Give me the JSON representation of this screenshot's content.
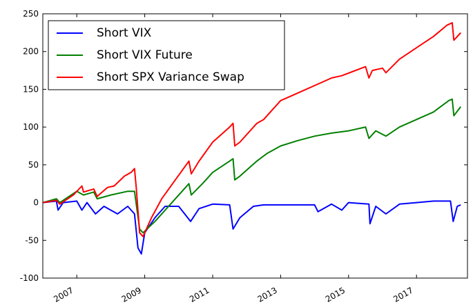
{
  "chart_data": {
    "type": "line",
    "series": [
      {
        "name": "Short VIX",
        "color": "#0000ff",
        "x": [
          2006.0,
          2006.4,
          2006.45,
          2006.6,
          2007.0,
          2007.15,
          2007.3,
          2007.55,
          2007.8,
          2008.2,
          2008.5,
          2008.7,
          2008.8,
          2008.9,
          2009.0,
          2009.3,
          2009.6,
          2010.0,
          2010.35,
          2010.6,
          2011.0,
          2011.5,
          2011.6,
          2011.8,
          2012.2,
          2012.5,
          2013.0,
          2013.5,
          2014.0,
          2014.1,
          2014.5,
          2014.8,
          2015.0,
          2015.6,
          2015.63,
          2015.8,
          2016.1,
          2016.5,
          2017.0,
          2017.5,
          2018.0,
          2018.08,
          2018.2,
          2018.3
        ],
        "values": [
          0,
          2,
          -10,
          0,
          2,
          -10,
          0,
          -15,
          -5,
          -15,
          -5,
          -15,
          -60,
          -68,
          -40,
          -20,
          -5,
          -5,
          -25,
          -8,
          -2,
          -3,
          -35,
          -20,
          -5,
          -3,
          -3,
          -3,
          -3,
          -12,
          -2,
          -10,
          0,
          -2,
          -28,
          -5,
          -15,
          -2,
          0,
          2,
          2,
          -25,
          -5,
          -3
        ]
      },
      {
        "name": "Short VIX Future",
        "color": "#008000",
        "x": [
          2006.0,
          2006.4,
          2006.5,
          2007.0,
          2007.2,
          2007.5,
          2007.6,
          2008.0,
          2008.5,
          2008.7,
          2008.85,
          2008.95,
          2009.3,
          2009.8,
          2010.3,
          2010.37,
          2010.7,
          2011.0,
          2011.5,
          2011.6,
          2011.65,
          2011.8,
          2012.3,
          2012.6,
          2013.0,
          2013.5,
          2014.0,
          2014.5,
          2015.0,
          2015.5,
          2015.6,
          2015.8,
          2016.1,
          2016.5,
          2017.0,
          2017.5,
          2017.95,
          2018.05,
          2018.1,
          2018.3
        ],
        "values": [
          0,
          5,
          0,
          15,
          10,
          14,
          5,
          10,
          15,
          15,
          -35,
          -40,
          -25,
          0,
          25,
          10,
          25,
          40,
          55,
          58,
          30,
          35,
          55,
          65,
          75,
          82,
          88,
          92,
          95,
          100,
          85,
          95,
          88,
          100,
          110,
          120,
          135,
          137,
          115,
          127
        ]
      },
      {
        "name": "Short SPX Variance Swap",
        "color": "#ff0000",
        "x": [
          2006.0,
          2006.4,
          2006.5,
          2006.9,
          2007.15,
          2007.2,
          2007.5,
          2007.6,
          2007.9,
          2008.1,
          2008.4,
          2008.6,
          2008.7,
          2008.75,
          2008.85,
          2008.95,
          2009.2,
          2009.5,
          2009.9,
          2010.3,
          2010.37,
          2010.6,
          2011.0,
          2011.5,
          2011.6,
          2011.65,
          2011.8,
          2012.3,
          2012.5,
          2013.0,
          2013.5,
          2014.0,
          2014.5,
          2014.8,
          2015.5,
          2015.6,
          2015.7,
          2016.0,
          2016.1,
          2016.5,
          2017.0,
          2017.5,
          2017.9,
          2018.05,
          2018.1,
          2018.3
        ],
        "values": [
          0,
          3,
          -2,
          10,
          22,
          14,
          18,
          8,
          20,
          22,
          35,
          40,
          45,
          20,
          -40,
          -45,
          -20,
          5,
          30,
          55,
          38,
          55,
          80,
          100,
          105,
          75,
          80,
          105,
          110,
          135,
          145,
          155,
          165,
          168,
          180,
          165,
          175,
          178,
          172,
          190,
          205,
          220,
          235,
          238,
          215,
          225
        ]
      }
    ],
    "xlim": [
      2006.0,
      2018.5
    ],
    "xticks": [
      2007,
      2009,
      2011,
      2013,
      2015,
      2017
    ],
    "ylim": [
      -100,
      250
    ],
    "yticks": [
      -100,
      -50,
      0,
      50,
      100,
      150,
      200,
      250
    ],
    "legend": "upper left",
    "grid": false
  }
}
